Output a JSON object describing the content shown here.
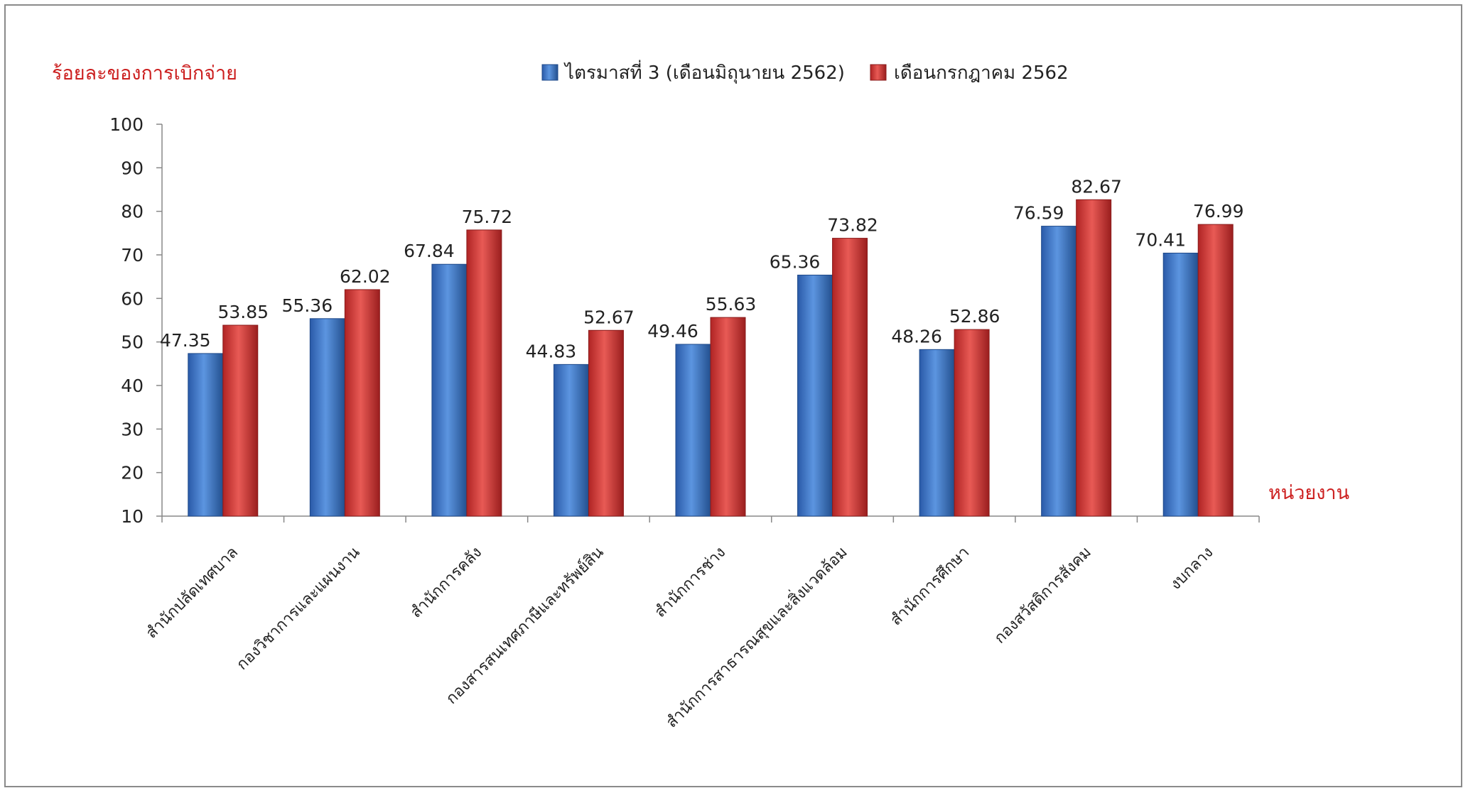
{
  "chart_data": {
    "type": "bar",
    "ylabel": "ร้อยละของการเบิกจ่าย",
    "xlabel": "หน่วยงาน",
    "ylim": [
      10,
      100
    ],
    "yticks": [
      10,
      20,
      30,
      40,
      50,
      60,
      70,
      80,
      90,
      100
    ],
    "categories": [
      "สำนักปลัดเทศบาล",
      "กองวิชาการและแผนงาน",
      "สำนักการคลัง",
      "กองสารสนเทศภาษีและทรัพย์สิน",
      "สำนักการช่าง",
      "สำนักการสาธารณสุขและสิ่งแวดล้อม",
      "สำนักการศึกษา",
      "กองสวัสดิการสังคม",
      "งบกลาง"
    ],
    "series": [
      {
        "name": "ไตรมาสที่ 3 (เดือนมิถุนายน 2562)",
        "color": "#3b73c4",
        "values": [
          47.35,
          55.36,
          67.84,
          44.83,
          49.46,
          65.36,
          48.26,
          76.59,
          70.41
        ]
      },
      {
        "name": "เดือนกรกฎาคม 2562",
        "color": "#cc3333",
        "values": [
          53.85,
          62.02,
          75.72,
          52.67,
          55.63,
          73.82,
          52.86,
          82.67,
          76.99
        ]
      }
    ],
    "grid": false,
    "legend_position": "top-center",
    "axis_title_color": "#cc1f1f"
  }
}
